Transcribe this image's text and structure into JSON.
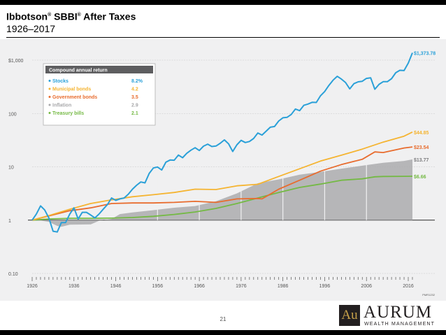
{
  "header": {
    "title_parts": [
      "Ibbotson",
      "®",
      " SBBI",
      "®",
      " After Taxes"
    ],
    "subtitle": "1926–2017"
  },
  "footer": {
    "page_number": "21",
    "logo_mark": "Au",
    "logo_name": "AURUM",
    "logo_tagline": "WEALTH MANAGEMENT"
  },
  "colors": {
    "panel_background": "#f0f0f1",
    "stocks": "#2aa0d8",
    "municipal_bonds": "#f5b431",
    "government_bonds": "#e86c2e",
    "inflation": "#a8a8aa",
    "treasury_bills": "#74b944"
  },
  "chart_data": {
    "type": "line",
    "title": "",
    "xlabel": "",
    "ylabel": "",
    "y_scale": "log",
    "ylim": [
      0.1,
      2000
    ],
    "xlim": [
      1926,
      2017
    ],
    "y_ticks": [
      {
        "value": 1000,
        "label": "$1,000"
      },
      {
        "value": 100,
        "label": "100"
      },
      {
        "value": 10,
        "label": "10"
      },
      {
        "value": 1,
        "label": "1"
      },
      {
        "value": 0.1,
        "label": "0.10"
      }
    ],
    "x_ticks": [
      {
        "value": 1926,
        "label": "1926"
      },
      {
        "value": 1936,
        "label": "1936"
      },
      {
        "value": 1946,
        "label": "1946"
      },
      {
        "value": 1956,
        "label": "1956"
      },
      {
        "value": 1966,
        "label": "1966"
      },
      {
        "value": 1976,
        "label": "1976"
      },
      {
        "value": 1986,
        "label": "1986"
      },
      {
        "value": 1996,
        "label": "1996"
      },
      {
        "value": 2006,
        "label": "2006"
      },
      {
        "value": 2016,
        "label": "2016"
      }
    ],
    "legend": {
      "position": "top-left",
      "title": "Compound annual return",
      "entries": [
        {
          "name": "Stocks",
          "value": "8.2%"
        },
        {
          "name": "Municipal bonds",
          "value": "4.2"
        },
        {
          "name": "Government bonds",
          "value": "3.5"
        },
        {
          "name": "Inflation",
          "value": "2.9"
        },
        {
          "name": "Treasury bills",
          "value": "2.1"
        }
      ]
    },
    "end_labels": [
      {
        "series": "Stocks",
        "label": "$1,373.78",
        "value": 1373.78
      },
      {
        "series": "Municipal bonds",
        "label": "$44.85",
        "value": 44.85
      },
      {
        "series": "Government bonds",
        "label": "$23.54",
        "value": 23.54
      },
      {
        "series": "Inflation",
        "label": "$13.77",
        "value": 13.77
      },
      {
        "series": "Treasury bills",
        "label": "$6.66",
        "value": 6.66
      }
    ],
    "source_note": "PMR1232",
    "series": [
      {
        "name": "Stocks",
        "key": "stocks",
        "x": [
          1926,
          1927,
          1928,
          1929,
          1930,
          1931,
          1932,
          1933,
          1934,
          1935,
          1936,
          1937,
          1938,
          1939,
          1940,
          1941,
          1942,
          1943,
          1944,
          1945,
          1946,
          1947,
          1948,
          1949,
          1950,
          1951,
          1952,
          1953,
          1954,
          1955,
          1956,
          1957,
          1958,
          1959,
          1960,
          1961,
          1962,
          1963,
          1964,
          1965,
          1966,
          1967,
          1968,
          1969,
          1970,
          1971,
          1972,
          1973,
          1974,
          1975,
          1976,
          1977,
          1978,
          1979,
          1980,
          1981,
          1982,
          1983,
          1984,
          1985,
          1986,
          1987,
          1988,
          1989,
          1990,
          1991,
          1992,
          1993,
          1994,
          1995,
          1996,
          1997,
          1998,
          1999,
          2000,
          2001,
          2002,
          2003,
          2004,
          2005,
          2006,
          2007,
          2008,
          2009,
          2010,
          2011,
          2012,
          2013,
          2014,
          2015,
          2016,
          2017
        ],
        "values": [
          1.0,
          1.3,
          1.85,
          1.55,
          1.1,
          0.62,
          0.6,
          0.9,
          0.9,
          1.3,
          1.7,
          1.05,
          1.4,
          1.4,
          1.25,
          1.1,
          1.3,
          1.6,
          1.95,
          2.6,
          2.35,
          2.5,
          2.6,
          3.05,
          3.8,
          4.5,
          5.2,
          5.0,
          7.5,
          9.5,
          9.9,
          8.7,
          12.2,
          13.4,
          13.3,
          16.6,
          14.8,
          17.9,
          20.5,
          22.8,
          20.2,
          24.4,
          26.6,
          24.0,
          24.5,
          27.6,
          32.0,
          26.9,
          19.4,
          25.9,
          31.3,
          28.5,
          29.8,
          34.0,
          43.0,
          39.4,
          46.6,
          55.3,
          57.0,
          72.2,
          83.0,
          84.6,
          95.8,
          121.0,
          113.0,
          142.0,
          150.0,
          162.0,
          161.0,
          215.0,
          258.0,
          335.0,
          420.0,
          498.0,
          441.0,
          380.0,
          289.0,
          362.0,
          392.0,
          402.0,
          455.0,
          467.0,
          285.0,
          352.0,
          395.0,
          394.0,
          449.0,
          581.0,
          645.0,
          638.0,
          877.0,
          1373.78
        ]
      },
      {
        "name": "Municipal bonds",
        "key": "municipal_bonds",
        "x": [
          1926,
          1930,
          1935,
          1940,
          1945,
          1950,
          1955,
          1960,
          1965,
          1970,
          1975,
          1980,
          1985,
          1990,
          1995,
          2000,
          2005,
          2010,
          2015,
          2017
        ],
        "values": [
          1.0,
          1.22,
          1.6,
          2.05,
          2.4,
          2.75,
          3.0,
          3.3,
          3.8,
          3.75,
          4.4,
          4.7,
          6.6,
          9.2,
          12.8,
          16.5,
          21.5,
          29.0,
          37.5,
          44.85
        ]
      },
      {
        "name": "Government bonds",
        "key": "government_bonds",
        "x": [
          1926,
          1930,
          1935,
          1940,
          1945,
          1950,
          1955,
          1960,
          1965,
          1970,
          1975,
          1980,
          1981,
          1985,
          1990,
          1995,
          2000,
          2005,
          2008,
          2010,
          2015,
          2017
        ],
        "values": [
          1.0,
          1.2,
          1.5,
          1.7,
          2.05,
          2.1,
          2.1,
          2.15,
          2.25,
          2.15,
          2.5,
          2.55,
          2.5,
          3.8,
          5.6,
          8.3,
          11.0,
          13.8,
          19.0,
          18.5,
          22.5,
          23.54
        ]
      },
      {
        "name": "Inflation",
        "key": "inflation",
        "x": [
          1926,
          1928,
          1930,
          1932,
          1933,
          1935,
          1940,
          1942,
          1945,
          1947,
          1950,
          1955,
          1960,
          1965,
          1970,
          1975,
          1980,
          1985,
          1990,
          1995,
          2000,
          2005,
          2010,
          2015,
          2017
        ],
        "values": [
          1.0,
          0.98,
          0.93,
          0.78,
          0.75,
          0.82,
          0.83,
          0.97,
          1.05,
          1.3,
          1.39,
          1.54,
          1.71,
          1.84,
          2.26,
          3.17,
          4.92,
          5.81,
          7.1,
          8.05,
          9.25,
          10.5,
          11.9,
          12.9,
          13.77
        ]
      },
      {
        "name": "Treasury bills",
        "key": "treasury_bills",
        "x": [
          1926,
          1930,
          1935,
          1940,
          1945,
          1950,
          1955,
          1960,
          1965,
          1970,
          1975,
          1980,
          1985,
          1990,
          1995,
          2000,
          2005,
          2008,
          2010,
          2015,
          2017
        ],
        "values": [
          1.0,
          1.05,
          1.08,
          1.08,
          1.09,
          1.12,
          1.18,
          1.28,
          1.42,
          1.66,
          2.05,
          2.6,
          3.3,
          4.1,
          4.75,
          5.6,
          5.95,
          6.5,
          6.6,
          6.63,
          6.66
        ]
      }
    ]
  }
}
